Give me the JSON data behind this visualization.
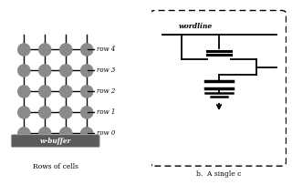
{
  "grid_rows": 5,
  "grid_cols": 4,
  "cell_color": "#8a8a8a",
  "line_color": "#000000",
  "bg_color": "#ffffff",
  "row_labels": [
    "row 4",
    "row 3",
    "row 2",
    "row 1",
    "row 0"
  ],
  "wbuffer_label": "w-buffer",
  "caption_left": "Rows of cells",
  "caption_right": "b.  A single c",
  "wordline_label": "wordline"
}
